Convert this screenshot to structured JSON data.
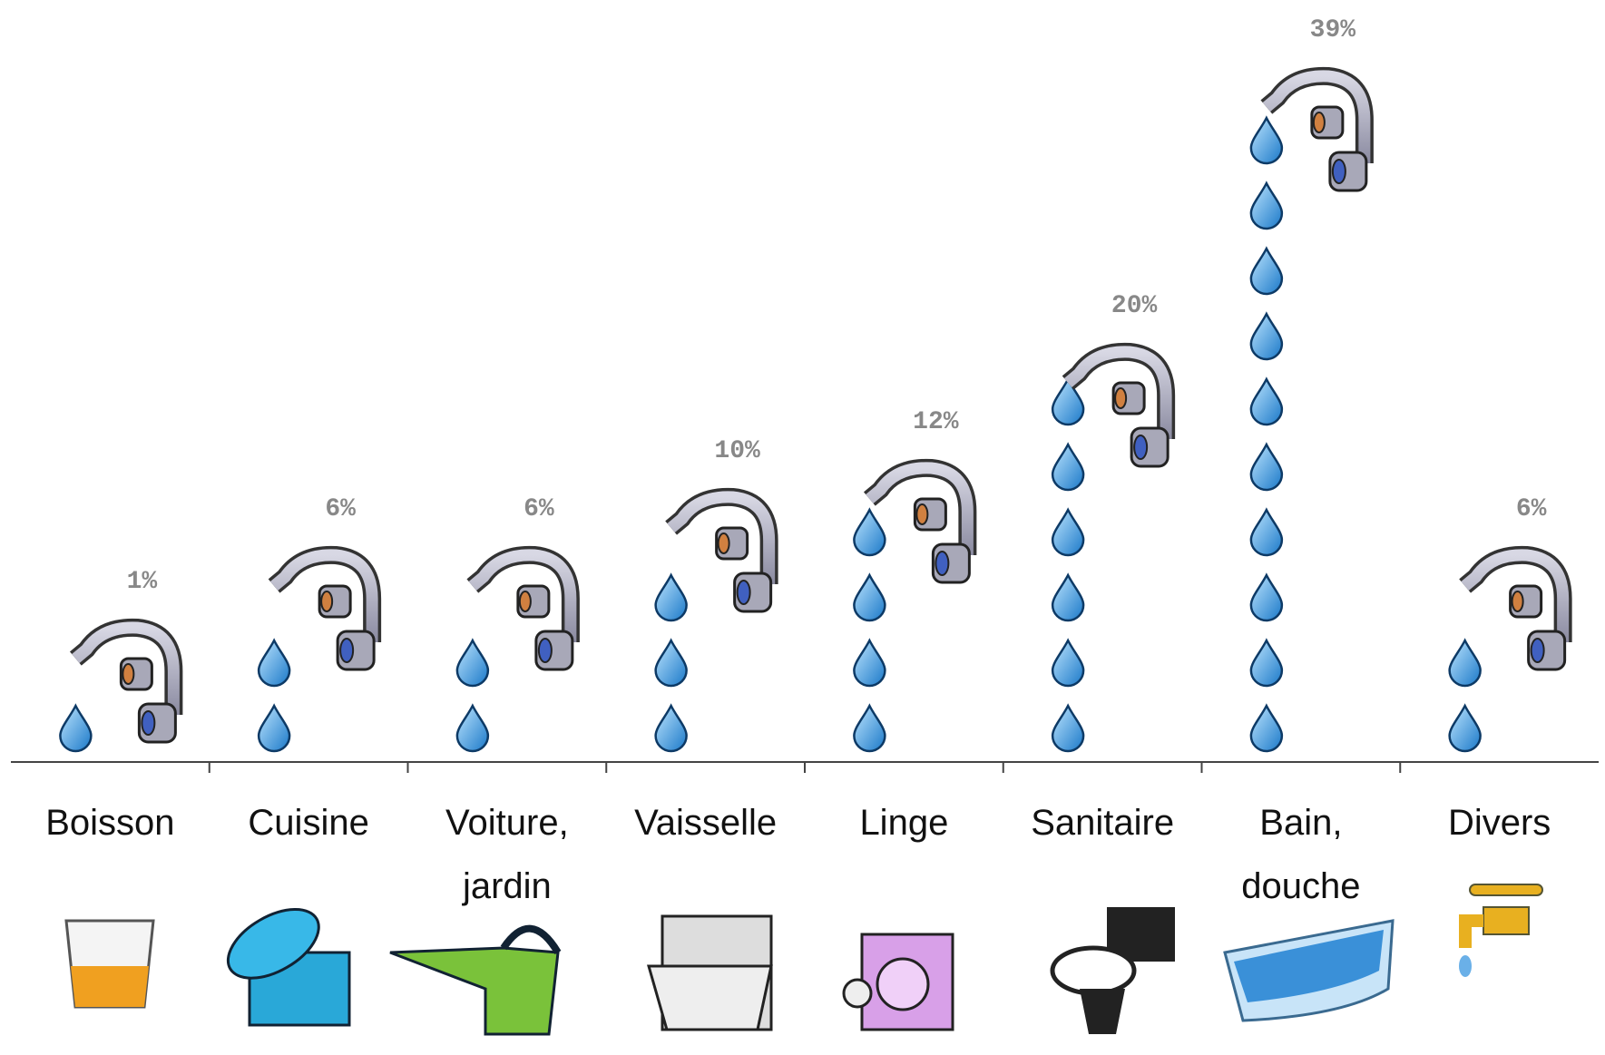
{
  "chart_data": {
    "type": "pictogram",
    "categories": [
      "Boisson",
      "Cuisine",
      "Voiture, jardin",
      "Vaisselle",
      "Linge",
      "Sanitaire",
      "Bain, douche",
      "Divers"
    ],
    "values": [
      1,
      6,
      6,
      10,
      12,
      20,
      39,
      6
    ],
    "value_labels": [
      "1%",
      "6%",
      "6%",
      "10%",
      "12%",
      "20%",
      "39%",
      "6%"
    ],
    "color": "#2a8fe0"
  }
}
